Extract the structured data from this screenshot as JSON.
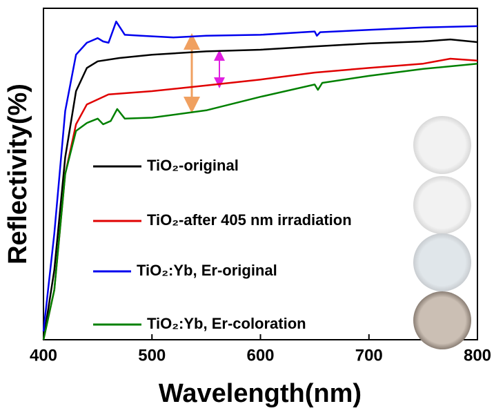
{
  "chart_data": {
    "type": "line",
    "xlabel": "Wavelength(nm)",
    "ylabel": "Reflectivity(%)",
    "xlim": [
      400,
      800
    ],
    "xticks": [
      400,
      500,
      600,
      700,
      800
    ],
    "ylim": [
      0,
      100
    ],
    "series": [
      {
        "name": "TiO₂-original",
        "color": "#000000",
        "x": [
          400,
          410,
          420,
          430,
          440,
          450,
          470,
          500,
          550,
          600,
          650,
          700,
          750,
          775,
          800
        ],
        "values": [
          0,
          21,
          55,
          75,
          82,
          84,
          85,
          86,
          87,
          87.5,
          88.5,
          89.4,
          90,
          90.6,
          89.8
        ]
      },
      {
        "name": "TiO₂-after 405 nm irradiation",
        "color": "#e00000",
        "x": [
          400,
          410,
          420,
          430,
          440,
          460,
          500,
          550,
          600,
          650,
          700,
          750,
          775,
          800
        ],
        "values": [
          0,
          15,
          50,
          65,
          71,
          74,
          75,
          76.7,
          78.5,
          80.6,
          82,
          83.3,
          84.8,
          84.2
        ]
      },
      {
        "name": "TiO₂:Yb, Er-original",
        "color": "#0000ee",
        "x": [
          400,
          410,
          420,
          430,
          440,
          450,
          455,
          460,
          467,
          475,
          490,
          520,
          550,
          600,
          650,
          652,
          655,
          700,
          750,
          800
        ],
        "values": [
          2.5,
          32,
          69,
          86,
          89.6,
          91,
          90,
          89.6,
          96,
          92,
          91.7,
          91.2,
          91.7,
          92,
          93,
          91.7,
          92.8,
          93.5,
          94.2,
          94.6
        ]
      },
      {
        "name": "TiO₂:Yb, Er-coloration",
        "color": "#008000",
        "x": [
          400,
          410,
          420,
          430,
          440,
          450,
          455,
          462,
          468,
          475,
          500,
          550,
          600,
          650,
          653,
          657,
          700,
          750,
          800
        ],
        "values": [
          0,
          15,
          50,
          63,
          65.4,
          66.7,
          65,
          66,
          69.6,
          66.7,
          67,
          69.2,
          73.3,
          77,
          75.4,
          77.5,
          79.6,
          81.7,
          83.3
        ]
      }
    ]
  }
}
